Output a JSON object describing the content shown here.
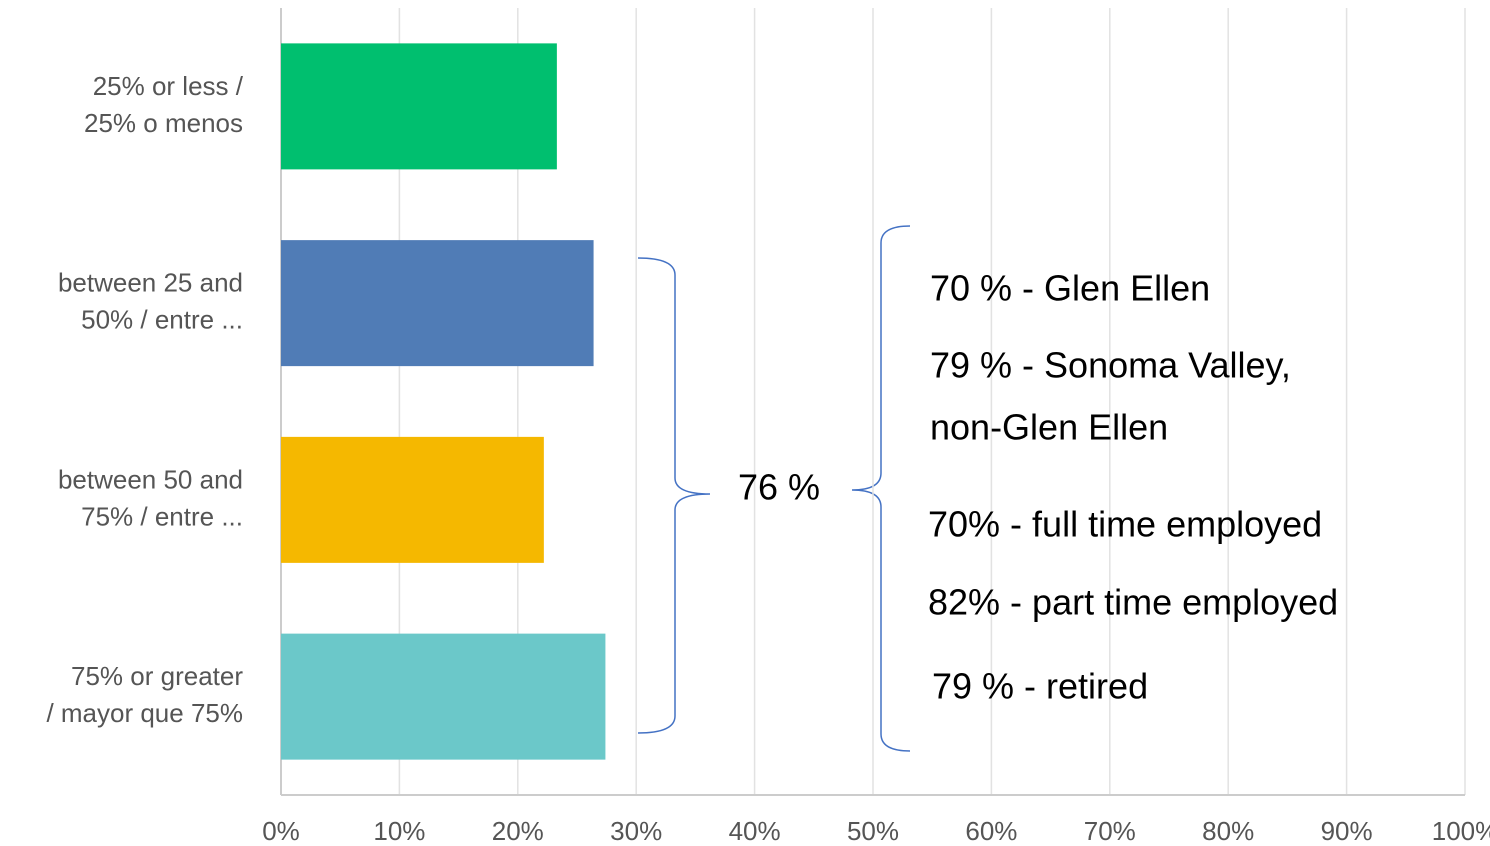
{
  "chart_data": {
    "type": "bar",
    "orientation": "horizontal",
    "categories": [
      "25% or less /\n25% o menos",
      "between 25 and\n50% / entre ...",
      "between 50 and\n75% / entre ...",
      "75% or greater\n/ mayor que 75%"
    ],
    "values": [
      23.3,
      26.4,
      22.2,
      27.4
    ],
    "colors": [
      "#00bf6f",
      "#507cb6",
      "#f5b800",
      "#6bc8c9"
    ],
    "xlim": [
      0,
      100
    ],
    "xticks": [
      {
        "value": 0,
        "label": "0%"
      },
      {
        "value": 10,
        "label": "10%"
      },
      {
        "value": 20,
        "label": "20%"
      },
      {
        "value": 30,
        "label": "30%"
      },
      {
        "value": 40,
        "label": "40%"
      },
      {
        "value": 50,
        "label": "50%"
      },
      {
        "value": 60,
        "label": "60%"
      },
      {
        "value": 70,
        "label": "70%"
      },
      {
        "value": 80,
        "label": "80%"
      },
      {
        "value": 90,
        "label": "90%"
      },
      {
        "value": 100,
        "label": "100%"
      }
    ],
    "grid": true,
    "annotations": [
      "76 %",
      "70 % - Glen Ellen",
      "79 % - Sonoma Valley,",
      "non-Glen Ellen",
      "70% - full time employed",
      "82% - part time employed",
      "79 % - retired"
    ]
  }
}
